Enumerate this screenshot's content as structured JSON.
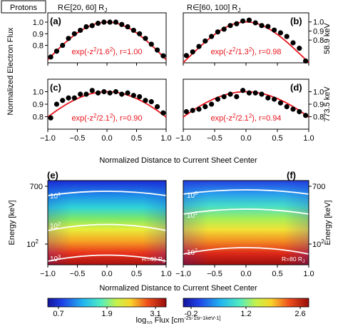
{
  "species_tag": "Protons",
  "column_titles": [
    "R∈[20, 60] R",
    "R∈[60, 100] R"
  ],
  "column_title_sub": "J",
  "energy_labels": [
    "58.9 keV",
    "773.5 keV"
  ],
  "ylabel_top": "Normalized Electron Flux",
  "xlabel": "Normalized Distance to Current Sheet Center",
  "ylabel_bottom": "Energy [keV]",
  "colorbar_label": "log",
  "colorbar_label_sub": "10",
  "colorbar_label_rest": " Flux  [cm",
  "colorbar_units": "-2s-1sr-1keV-1]",
  "x_ticks": [
    "−1.0",
    "−0.5",
    "0.0",
    "0.5",
    "1.0"
  ],
  "y_ticks_top": [
    "0.8",
    "0.9",
    "1.0"
  ],
  "y_ticks_energy": [
    "700",
    "10"
  ],
  "y_tick_energy_exp": "2",
  "colorbar_ticks_left": [
    "0.7",
    "1.9",
    "3.1"
  ],
  "colorbar_ticks_right": [
    "-0.2",
    "1.2",
    "2.6"
  ],
  "colors": {
    "fit": "#e8141d",
    "points": "#000000",
    "contour": "#ffffff"
  },
  "chart_data": [
    {
      "type": "scatter",
      "panel": "(a)",
      "column": "R∈[20, 60] R_J",
      "energy": "58.9 keV",
      "xlim": [
        -1,
        1
      ],
      "ylim": [
        0.65,
        1.08
      ],
      "x": [
        -0.95,
        -0.85,
        -0.75,
        -0.65,
        -0.55,
        -0.45,
        -0.35,
        -0.25,
        -0.15,
        -0.05,
        0.05,
        0.15,
        0.25,
        0.35,
        0.45,
        0.55,
        0.65,
        0.75,
        0.85,
        0.95
      ],
      "y": [
        0.7,
        0.75,
        0.8,
        0.86,
        0.9,
        0.93,
        0.96,
        0.97,
        0.99,
        1.0,
        1.0,
        1.0,
        0.98,
        0.96,
        0.93,
        0.9,
        0.86,
        0.81,
        0.76,
        0.71
      ],
      "fit": "exp(-z2/1.62)",
      "fit_prefix": "exp(-z",
      "fit_exp": "2",
      "fit_mid": "/1.6",
      "fit_suffix": "), r=1.00",
      "fit_r": 1.0,
      "fit_width": 1.6
    },
    {
      "type": "scatter",
      "panel": "(b)",
      "column": "R∈[60, 100] R_J",
      "energy": "58.9 keV",
      "xlim": [
        -1,
        1
      ],
      "ylim": [
        0.55,
        1.1
      ],
      "x": [
        -0.95,
        -0.85,
        -0.75,
        -0.65,
        -0.55,
        -0.45,
        -0.35,
        -0.25,
        -0.15,
        -0.05,
        0.05,
        0.15,
        0.25,
        0.35,
        0.45,
        0.55,
        0.65,
        0.75,
        0.85,
        0.95
      ],
      "y": [
        0.63,
        0.67,
        0.73,
        0.79,
        0.84,
        0.89,
        0.92,
        0.96,
        0.98,
        1.01,
        1.02,
        0.99,
        0.96,
        0.95,
        0.91,
        0.88,
        0.84,
        0.77,
        0.71,
        0.57
      ],
      "fit": "exp(-z2/1.32)",
      "fit_prefix": "exp(-z",
      "fit_exp": "2",
      "fit_mid": "/1.3",
      "fit_suffix": "), r=0.98",
      "fit_r": 0.98,
      "fit_width": 1.3
    },
    {
      "type": "scatter",
      "panel": "(c)",
      "column": "R∈[20, 60] R_J",
      "energy": "773.5 keV",
      "xlim": [
        -1,
        1
      ],
      "ylim": [
        0.7,
        1.1
      ],
      "x": [
        -0.95,
        -0.85,
        -0.75,
        -0.65,
        -0.55,
        -0.45,
        -0.35,
        -0.25,
        -0.15,
        -0.05,
        0.05,
        0.15,
        0.25,
        0.35,
        0.45,
        0.55,
        0.65,
        0.75,
        0.85,
        0.95
      ],
      "y": [
        0.79,
        0.9,
        0.93,
        0.95,
        0.95,
        0.98,
        0.98,
        1.01,
        0.99,
        1.0,
        0.99,
        1.0,
        0.98,
        0.99,
        0.97,
        0.96,
        0.93,
        0.92,
        0.88,
        0.83
      ],
      "fit": "exp(-z2/2.12)",
      "fit_prefix": "exp(-z",
      "fit_exp": "2",
      "fit_mid": "/2.1",
      "fit_suffix": "), r=0.90",
      "fit_r": 0.9,
      "fit_width": 2.1
    },
    {
      "type": "scatter",
      "panel": "(d)",
      "column": "R∈[60, 100] R_J",
      "energy": "773.5 keV",
      "xlim": [
        -1,
        1
      ],
      "ylim": [
        0.7,
        1.1
      ],
      "x": [
        -0.95,
        -0.85,
        -0.75,
        -0.65,
        -0.55,
        -0.45,
        -0.35,
        -0.25,
        -0.15,
        -0.05,
        0.05,
        0.15,
        0.25,
        0.35,
        0.45,
        0.55,
        0.65,
        0.75,
        0.85,
        0.95
      ],
      "y": [
        0.84,
        0.85,
        0.86,
        0.88,
        0.9,
        0.94,
        0.96,
        0.98,
        0.96,
        1.01,
        0.99,
        0.99,
        0.98,
        0.95,
        0.94,
        0.91,
        0.88,
        0.86,
        0.84,
        0.81
      ],
      "fit": "exp(-z2/2.12)",
      "fit_prefix": "exp(-z",
      "fit_exp": "2",
      "fit_mid": "/2.1",
      "fit_suffix": "), r=0.94",
      "fit_r": 0.94,
      "fit_width": 2.1
    },
    {
      "type": "heatmap",
      "panel": "(e)",
      "column": "R∈[20, 60] R_J",
      "xlim": [
        -1,
        1
      ],
      "ylim_keV": [
        40,
        800
      ],
      "yscale": "log",
      "colorbar_range": [
        0.7,
        3.1
      ],
      "contours": [
        {
          "label": "10",
          "label_exp": "1",
          "energy_keV": 600
        },
        {
          "label": "10",
          "label_exp": "2",
          "energy_keV": 200
        },
        {
          "label": "10",
          "label_exp": "3",
          "energy_keV": 55
        }
      ],
      "annotation": "R=40 R",
      "annotation_sub": "J"
    },
    {
      "type": "heatmap",
      "panel": "(f)",
      "column": "R∈[60, 100] R_J",
      "xlim": [
        -1,
        1
      ],
      "ylim_keV": [
        40,
        800
      ],
      "yscale": "log",
      "colorbar_range": [
        -0.2,
        2.6
      ],
      "contours": [
        {
          "label": "10",
          "label_exp": "0",
          "energy_keV": 650
        },
        {
          "label": "10",
          "label_exp": "1",
          "energy_keV": 260
        },
        {
          "label": "10",
          "label_exp": "2",
          "energy_keV": 65
        }
      ],
      "annotation": "R=80 R",
      "annotation_sub": "J"
    }
  ]
}
